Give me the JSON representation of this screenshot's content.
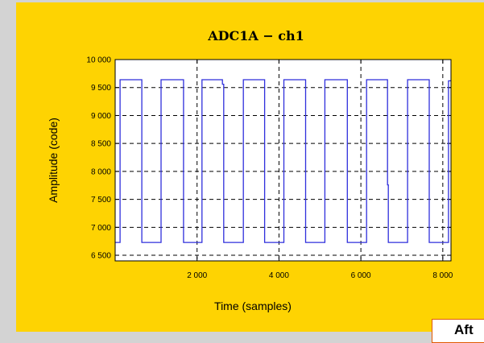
{
  "colors": {
    "background": "#d3d3d3",
    "panel": "#fed302",
    "plot_background": "#ffffff",
    "line": "#2f2fdc",
    "callout_border": "#e05a00"
  },
  "callout": {
    "text": "Aft"
  },
  "chart_data": {
    "type": "line",
    "title": "ADC1A  −  ch1",
    "xlabel": "Time (samples)",
    "ylabel": "Amplitude (code)",
    "xlim": [
      0,
      8200
    ],
    "ylim": [
      6400,
      10000
    ],
    "xticks": [
      2000,
      4000,
      6000,
      8000
    ],
    "xtick_labels": [
      "2 000",
      "4 000",
      "6 000",
      "8 000"
    ],
    "yticks": [
      6500,
      7000,
      7500,
      8000,
      8500,
      9000,
      9500,
      10000
    ],
    "ytick_labels": [
      "6 500",
      "7 000",
      "7 500",
      "8 000",
      "8 500",
      "9 000",
      "9 500",
      "10 000"
    ],
    "grid": true,
    "legend": false,
    "series": [
      {
        "values": [
          [
            0,
            6730
          ],
          [
            120,
            6730
          ],
          [
            120,
            9640
          ],
          [
            650,
            9640
          ],
          [
            650,
            6730
          ],
          [
            1120,
            6730
          ],
          [
            1120,
            9640
          ],
          [
            1670,
            9640
          ],
          [
            1670,
            6730
          ],
          [
            2120,
            6730
          ],
          [
            2120,
            9640
          ],
          [
            2620,
            9640
          ],
          [
            2620,
            9560
          ],
          [
            2650,
            9560
          ],
          [
            2650,
            6730
          ],
          [
            3130,
            6730
          ],
          [
            3130,
            9640
          ],
          [
            3650,
            9640
          ],
          [
            3650,
            6730
          ],
          [
            4120,
            6730
          ],
          [
            4120,
            9640
          ],
          [
            4650,
            9640
          ],
          [
            4650,
            6730
          ],
          [
            5120,
            6730
          ],
          [
            5120,
            9640
          ],
          [
            5670,
            9640
          ],
          [
            5670,
            6730
          ],
          [
            6140,
            6730
          ],
          [
            6140,
            9640
          ],
          [
            6650,
            9640
          ],
          [
            6650,
            7760
          ],
          [
            6670,
            7760
          ],
          [
            6670,
            6730
          ],
          [
            7140,
            6730
          ],
          [
            7140,
            9640
          ],
          [
            7670,
            9640
          ],
          [
            7670,
            6730
          ],
          [
            8140,
            6730
          ],
          [
            8140,
            9620
          ],
          [
            8200,
            9620
          ]
        ]
      }
    ]
  }
}
